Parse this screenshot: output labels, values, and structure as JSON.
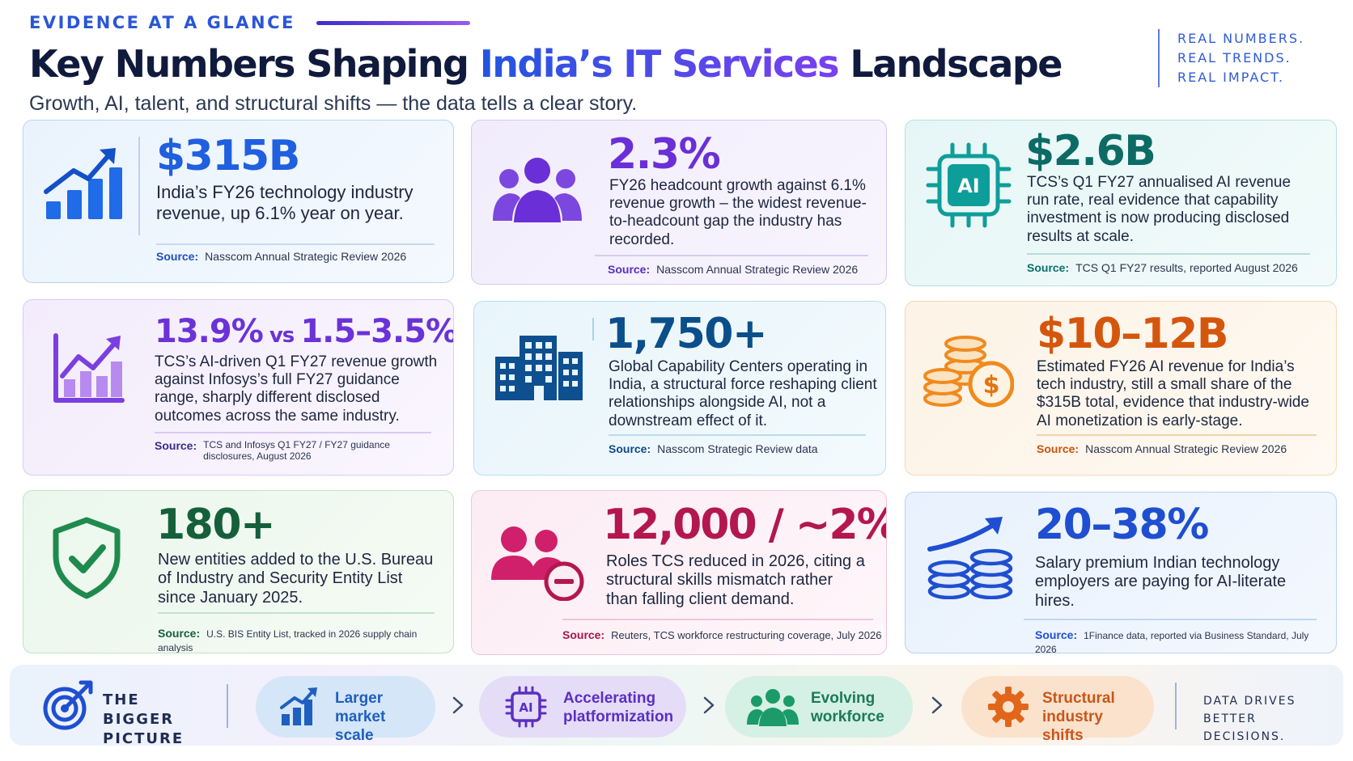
{
  "header": {
    "eyebrow": "EVIDENCE AT A GLANCE",
    "title_pre": "Key Numbers Shaping ",
    "title_accent": "India’s IT Services",
    "title_post": " Landscape",
    "subtitle": "Growth, AI, talent, and structural shifts — the data tells a clear story.",
    "tagline": [
      "REAL NUMBERS.",
      "REAL TRENDS.",
      "REAL IMPACT."
    ]
  },
  "source_label": "Source:",
  "cards": [
    {
      "stat": "$315B",
      "desc": "India’s FY26 technology industry revenue, up 6.1% year on year.",
      "source": "Nasscom Annual Strategic Review 2026",
      "icon": "bar-chart-up-icon",
      "color": "#1f5fe0"
    },
    {
      "stat": "2.3%",
      "desc": "FY26 headcount growth against 6.1% revenue growth – the widest revenue-to-headcount gap the industry has recorded.",
      "source": "Nasscom Annual Strategic Review 2026",
      "icon": "people-group-icon",
      "color": "#6a2fd6"
    },
    {
      "stat": "$2.6B",
      "desc": "TCS’s Q1 FY27 annualised AI revenue run rate, real evidence that capability investment is now producing disclosed results at scale.",
      "source": "TCS Q1 FY27 results, reported August 2026",
      "icon": "ai-chip-icon",
      "color": "#0d6b66"
    },
    {
      "stat_a": "13.9%",
      "stat_vs": " vs ",
      "stat_b": "1.5–3.5%",
      "desc": "TCS’s AI-driven Q1 FY27 revenue growth against Infosys’s full FY27 guidance range, sharply different disclosed outcomes across the same industry.",
      "source": "TCS and Infosys Q1 FY27 / FY27 guidance disclosures, August 2026",
      "icon": "growth-chart-icon",
      "color": "#6b32d8"
    },
    {
      "stat": "1,750+",
      "desc": "Global Capability Centers operating in India, a structural force reshaping client relationships alongside AI, not a downstream effect of it.",
      "source": "Nasscom Strategic Review data",
      "icon": "office-building-icon",
      "color": "#0b4f8a"
    },
    {
      "stat": "$10–12B",
      "desc": "Estimated FY26 AI revenue for India’s tech industry, still a small share of the $315B total, evidence that industry-wide AI monetization is early-stage.",
      "source": "Nasscom Annual Strategic Review 2026",
      "icon": "coins-dollar-icon",
      "color": "#d4560d"
    },
    {
      "stat": "180+",
      "desc": "New entities added to the U.S. Bureau of Industry and Security Entity List since January 2025.",
      "source": "U.S. BIS Entity List, tracked in 2026 supply chain analysis",
      "icon": "shield-check-icon",
      "color": "#15603a"
    },
    {
      "stat": "12,000 / ~2%",
      "desc": "Roles TCS reduced in 2026, citing a structural skills mismatch rather than falling client demand.",
      "source": "Reuters, TCS workforce restructuring coverage, July 2026",
      "icon": "people-minus-icon",
      "color": "#b3174e"
    },
    {
      "stat": "20–38%",
      "desc": "Salary premium Indian technology employers are paying for AI-literate hires.",
      "source": "1Finance data, reported via Business Standard, July 2026",
      "icon": "coins-growth-icon",
      "color": "#1f4fd0"
    }
  ],
  "footer": {
    "label": "THE BIGGER PICTURE",
    "pills": [
      {
        "label": "Larger market scale",
        "icon": "bar-chart-up-icon",
        "color": "#1f5fbf"
      },
      {
        "label": "Accelerating platformization",
        "icon": "ai-chip-icon",
        "color": "#5b2fc0"
      },
      {
        "label": "Evolving workforce",
        "icon": "people-group-icon",
        "color": "#1b7a5a"
      },
      {
        "label": "Structural industry shifts",
        "icon": "gear-icon",
        "color": "#c9561a"
      }
    ],
    "right_label": "DATA DRIVES BETTER DECISIONS."
  }
}
